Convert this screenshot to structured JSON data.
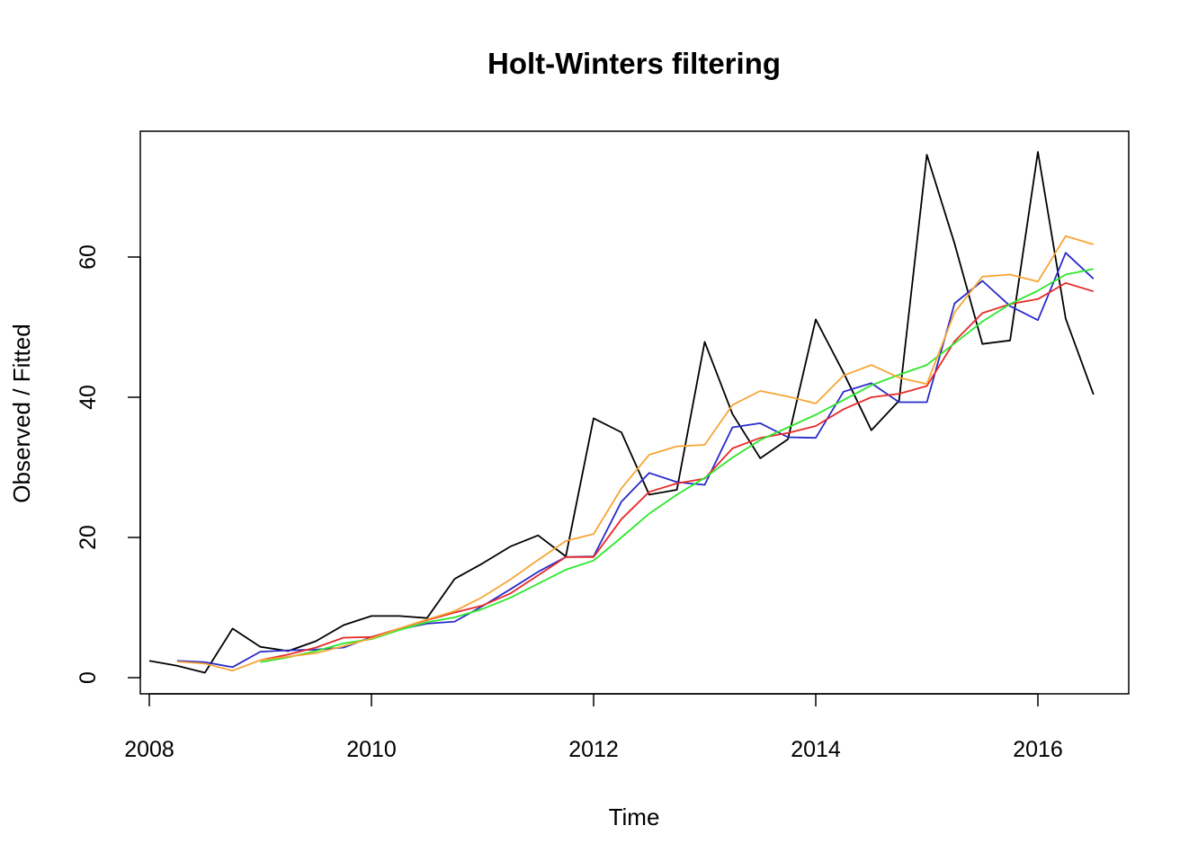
{
  "chart_data": {
    "type": "line",
    "title": "Holt-Winters filtering",
    "xlabel": "Time",
    "ylabel": "Observed / Fitted",
    "xlim": [
      2008,
      2016.75
    ],
    "ylim": [
      0,
      75
    ],
    "x_ticks": [
      2008,
      2010,
      2012,
      2014,
      2016
    ],
    "y_ticks": [
      0,
      20,
      40,
      60
    ],
    "grid": false,
    "legend": "none",
    "series": [
      {
        "color": "#000000",
        "start": 2008,
        "step": 0.25,
        "values": [
          2.4,
          1.7,
          0.7,
          7.0,
          4.4,
          3.8,
          5.2,
          7.5,
          8.8,
          8.8,
          8.5,
          14.1,
          16.3,
          18.7,
          20.3,
          17.3,
          37.0,
          35.0,
          26.1,
          26.8,
          47.9,
          37.6,
          31.3,
          34.0,
          51.1,
          43.5,
          35.3,
          39.5,
          74.6,
          61.9,
          47.6,
          48.1,
          75.0,
          51.2,
          40.4
        ]
      },
      {
        "color": "#2a2acb",
        "start": 2008.25,
        "step": 0.25,
        "values": [
          2.4,
          2.2,
          1.5,
          3.7,
          3.9,
          4.0,
          4.3,
          5.8,
          6.9,
          7.7,
          8.0,
          10.2,
          12.6,
          15.1,
          17.2,
          17.3,
          25.1,
          29.2,
          27.9,
          27.5,
          35.7,
          36.3,
          34.3,
          34.2,
          40.8,
          42.0,
          39.3,
          39.3,
          53.4,
          56.6,
          53.0,
          51.0,
          60.6,
          56.9
        ]
      },
      {
        "color": "#e82a2a",
        "start": 2009,
        "step": 0.25,
        "values": [
          2.5,
          3.3,
          4.3,
          5.7,
          5.8,
          7.0,
          8.2,
          9.3,
          10.3,
          12.0,
          14.6,
          17.2,
          17.2,
          22.6,
          26.5,
          27.7,
          28.4,
          32.7,
          34.2,
          34.9,
          35.9,
          38.3,
          40.0,
          40.5,
          41.6,
          48.0,
          52.0,
          53.3,
          54.0,
          56.3,
          55.1
        ]
      },
      {
        "color": "#2ae82a",
        "start": 2009,
        "step": 0.25,
        "values": [
          2.2,
          2.9,
          3.8,
          4.9,
          5.5,
          6.8,
          7.9,
          8.6,
          9.8,
          11.4,
          13.4,
          15.4,
          16.7,
          20.0,
          23.4,
          26.1,
          28.5,
          31.4,
          33.9,
          35.7,
          37.5,
          39.6,
          41.7,
          43.2,
          44.6,
          47.7,
          50.8,
          53.3,
          55.2,
          57.5,
          58.3
        ]
      },
      {
        "color": "#f8a535",
        "start": 2008.25,
        "step": 0.25,
        "values": [
          2.3,
          2.0,
          1.0,
          2.5,
          3.0,
          3.5,
          4.5,
          5.6,
          7.0,
          8.3,
          9.5,
          11.5,
          14.0,
          16.8,
          19.5,
          20.5,
          27.0,
          31.8,
          33.0,
          33.2,
          38.9,
          40.9,
          40.1,
          39.1,
          43.1,
          44.6,
          42.8,
          41.9,
          52.1,
          57.2,
          57.5,
          56.5,
          63.0,
          61.8
        ]
      }
    ]
  }
}
